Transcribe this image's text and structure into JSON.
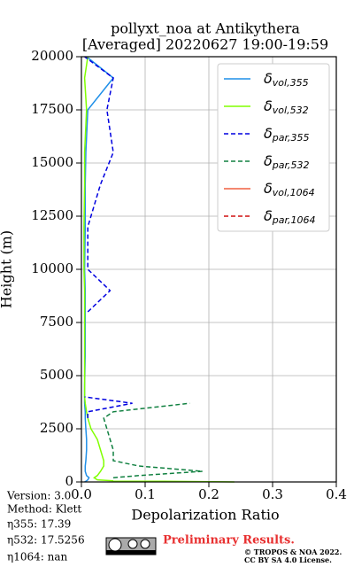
{
  "chart_data": {
    "type": "profile",
    "title": "pollyxt_noa at Antikythera",
    "subtitle": "[Averaged] 20220627 19:00-19:59",
    "x_label": "Depolarization Ratio",
    "y_label": "Height (m)",
    "heights": [
      0,
      50,
      100,
      200,
      300,
      500,
      750,
      1000,
      1500,
      2000,
      2500,
      3000,
      3300,
      3700,
      4000,
      4500,
      6000,
      8000,
      9000,
      10000,
      12000,
      14000,
      15500,
      17500,
      19000,
      20000
    ],
    "series": [
      {
        "name": "δvol,355",
        "color": "#1f8fe8",
        "dash": false,
        "values": [
          0.005,
          0.008,
          0.01,
          0.012,
          0.008,
          0.006,
          0.006,
          0.007,
          0.008,
          0.008,
          0.007,
          0.006,
          0.006,
          0.005,
          0.005,
          0.005,
          0.006,
          0.006,
          0.006,
          0.005,
          0.006,
          0.006,
          0.007,
          0.01,
          0.05,
          0.008
        ]
      },
      {
        "name": "δvol,532",
        "color": "#80ff00",
        "dash": false,
        "values": [
          0.24,
          0.05,
          0.025,
          0.02,
          0.025,
          0.03,
          0.035,
          0.035,
          0.03,
          0.025,
          0.015,
          0.01,
          0.008,
          0.006,
          0.005,
          0.005,
          0.005,
          0.005,
          0.005,
          0.004,
          0.004,
          0.005,
          0.005,
          0.008,
          0.005,
          0.01
        ]
      },
      {
        "name": "δpar,355",
        "color": "#0000e0",
        "dash": true,
        "values": [
          null,
          null,
          null,
          null,
          null,
          null,
          null,
          null,
          null,
          null,
          null,
          0.01,
          0.01,
          0.08,
          0.005,
          null,
          null,
          0.01,
          0.045,
          0.01,
          0.01,
          0.03,
          0.05,
          0.04,
          0.05,
          0.005
        ]
      },
      {
        "name": "δpar,532",
        "color": "#108040",
        "dash": true,
        "values": [
          null,
          null,
          null,
          0.05,
          0.09,
          0.19,
          0.09,
          0.05,
          0.05,
          0.045,
          0.04,
          0.035,
          0.05,
          0.17,
          null,
          null,
          null,
          null,
          null,
          null,
          null,
          null,
          null,
          null,
          null,
          null
        ]
      },
      {
        "name": "δvol,1064",
        "color": "#f06040",
        "dash": false,
        "values": [
          null,
          null,
          null,
          null,
          null,
          null,
          null,
          null,
          null,
          null,
          null,
          null,
          null,
          null,
          null,
          null,
          null,
          null,
          null,
          null,
          null,
          null,
          null,
          null,
          null,
          null
        ]
      },
      {
        "name": "δpar,1064",
        "color": "#d01010",
        "dash": true,
        "values": [
          null,
          null,
          null,
          null,
          null,
          null,
          null,
          null,
          null,
          null,
          null,
          null,
          null,
          null,
          null,
          null,
          null,
          null,
          null,
          null,
          null,
          null,
          null,
          null,
          null,
          null
        ]
      }
    ],
    "xlim": [
      0,
      0.4
    ],
    "xticks": [
      {
        "value": 0,
        "label": "0.0"
      },
      0.1,
      0.2,
      0.3,
      0.4
    ],
    "ylim": [
      0,
      20000
    ],
    "yticks": [
      0,
      2500,
      5000,
      7500,
      10000,
      12500,
      15000,
      17500,
      20000
    ],
    "grid": true,
    "legend": "upper right",
    "info": [
      "Version: 3.0",
      "Method: Klett",
      "η355:  17.39",
      "η532: 17.5256",
      "η1064:    nan"
    ],
    "notice": "Preliminary Results.",
    "copyright": [
      "© TROPOS & NOA 2022.",
      "CC BY SA 4.0 License."
    ]
  }
}
